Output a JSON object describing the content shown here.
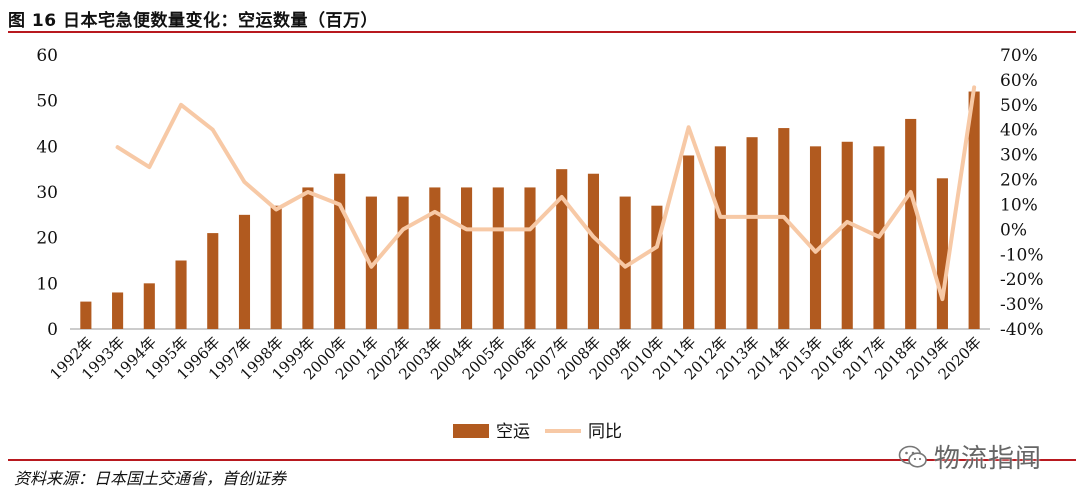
{
  "figure": {
    "title": "图 16  日本宅急便数量变化：空运数量（百万）",
    "source": "资料来源：日本国土交通省，首创证券",
    "watermark": "物流指闻",
    "accent_color": "#b8191f"
  },
  "chart_data": {
    "type": "bar",
    "categories": [
      "1992年",
      "1993年",
      "1994年",
      "1995年",
      "1996年",
      "1997年",
      "1998年",
      "1999年",
      "2000年",
      "2001年",
      "2002年",
      "2003年",
      "2004年",
      "2005年",
      "2006年",
      "2007年",
      "2008年",
      "2009年",
      "2010年",
      "2011年",
      "2012年",
      "2013年",
      "2014年",
      "2015年",
      "2016年",
      "2017年",
      "2018年",
      "2019年",
      "2020年"
    ],
    "series": [
      {
        "name": "空运",
        "type": "bar",
        "axis": "left",
        "color": "#b15a1f",
        "values": [
          6,
          8,
          10,
          15,
          21,
          25,
          27,
          31,
          34,
          29,
          29,
          31,
          31,
          31,
          31,
          35,
          34,
          29,
          27,
          38,
          40,
          42,
          44,
          40,
          41,
          40,
          46,
          33,
          52
        ]
      },
      {
        "name": "同比",
        "type": "line",
        "axis": "right",
        "color": "#f7c9a6",
        "values": [
          null,
          0.33,
          0.25,
          0.5,
          0.4,
          0.19,
          0.08,
          0.15,
          0.1,
          -0.15,
          0.0,
          0.07,
          0.0,
          0.0,
          0.0,
          0.13,
          -0.03,
          -0.15,
          -0.07,
          0.41,
          0.05,
          0.05,
          0.05,
          -0.09,
          0.03,
          -0.03,
          0.15,
          -0.28,
          0.57
        ]
      }
    ],
    "y_left": {
      "ylim": [
        0,
        60
      ],
      "ticks": [
        0,
        10,
        20,
        30,
        40,
        50,
        60
      ]
    },
    "y_right": {
      "ylim": [
        -0.4,
        0.7
      ],
      "ticks": [
        -0.4,
        -0.3,
        -0.2,
        -0.1,
        0,
        0.1,
        0.2,
        0.3,
        0.4,
        0.5,
        0.6,
        0.7
      ],
      "tick_labels": [
        "-40%",
        "-30%",
        "-20%",
        "-10%",
        "0%",
        "10%",
        "20%",
        "30%",
        "40%",
        "50%",
        "60%",
        "70%"
      ]
    },
    "grid": false,
    "legend_position": "bottom-center"
  }
}
